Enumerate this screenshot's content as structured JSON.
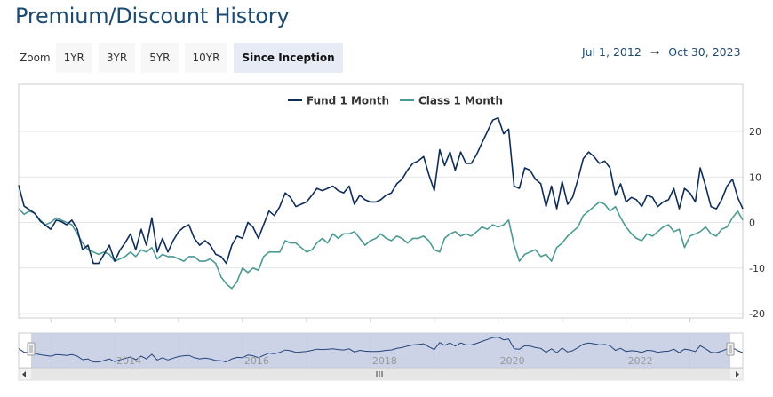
{
  "page": {
    "title": "Premium/Discount History"
  },
  "zoom": {
    "label": "Zoom",
    "buttons": [
      {
        "label": "1YR",
        "active": false
      },
      {
        "label": "3YR",
        "active": false
      },
      {
        "label": "5YR",
        "active": false
      },
      {
        "label": "10YR",
        "active": false
      },
      {
        "label": "Since Inception",
        "active": true
      }
    ]
  },
  "range": {
    "start": "Jul 1, 2012",
    "arrow": "→",
    "end": "Oct 30, 2023"
  },
  "colors": {
    "fund": "#0f2d59",
    "class": "#4c9a94",
    "grid": "#e6e6e6",
    "navigator_mask": "#c3cbe3"
  },
  "chart_data": {
    "type": "line",
    "title": "",
    "xlabel": "",
    "ylabel": "",
    "ylim": [
      -20,
      20
    ],
    "yticks": [
      -20,
      -10,
      0,
      10,
      20
    ],
    "xlim": [
      "2012-07-01",
      "2023-10-30"
    ],
    "grid": true,
    "legend_position": "top-center",
    "navigator_ticks": [
      "2014",
      "2016",
      "2018",
      "2020",
      "2022"
    ],
    "series": [
      {
        "name": "Fund 1 Month",
        "color": "#0f2d59",
        "points": [
          [
            "2012-07-01",
            8.2
          ],
          [
            "2012-08-01",
            3.6
          ],
          [
            "2012-09-01",
            2.8
          ],
          [
            "2012-10-01",
            2.0
          ],
          [
            "2012-11-01",
            0.3
          ],
          [
            "2012-12-01",
            -0.6
          ],
          [
            "2013-01-01",
            -1.5
          ],
          [
            "2013-02-01",
            0.5
          ],
          [
            "2013-03-01",
            0.2
          ],
          [
            "2013-04-01",
            -0.5
          ],
          [
            "2013-05-01",
            0.5
          ],
          [
            "2013-06-01",
            -1.5
          ],
          [
            "2013-07-01",
            -6.0
          ],
          [
            "2013-08-01",
            -5.0
          ],
          [
            "2013-09-01",
            -9.0
          ],
          [
            "2013-10-01",
            -9.0
          ],
          [
            "2013-11-01",
            -7.0
          ],
          [
            "2013-12-01",
            -5.0
          ],
          [
            "2014-01-01",
            -8.5
          ],
          [
            "2014-02-01",
            -6.0
          ],
          [
            "2014-03-01",
            -4.5
          ],
          [
            "2014-04-01",
            -2.5
          ],
          [
            "2014-05-01",
            -6.0
          ],
          [
            "2014-06-01",
            -1.5
          ],
          [
            "2014-07-01",
            -5.0
          ],
          [
            "2014-08-01",
            1.0
          ],
          [
            "2014-09-01",
            -6.5
          ],
          [
            "2014-10-01",
            -3.5
          ],
          [
            "2014-11-01",
            -6.5
          ],
          [
            "2014-12-01",
            -4.0
          ],
          [
            "2015-01-01",
            -2.0
          ],
          [
            "2015-02-01",
            -1.0
          ],
          [
            "2015-03-01",
            -0.5
          ],
          [
            "2015-04-01",
            -3.5
          ],
          [
            "2015-05-01",
            -5.0
          ],
          [
            "2015-06-01",
            -4.0
          ],
          [
            "2015-07-01",
            -5.0
          ],
          [
            "2015-08-01",
            -7.0
          ],
          [
            "2015-09-01",
            -7.5
          ],
          [
            "2015-10-01",
            -9.0
          ],
          [
            "2015-11-01",
            -5.0
          ],
          [
            "2015-12-01",
            -3.0
          ],
          [
            "2016-01-01",
            -3.5
          ],
          [
            "2016-02-01",
            0.0
          ],
          [
            "2016-03-01",
            -1.0
          ],
          [
            "2016-04-01",
            -3.5
          ],
          [
            "2016-05-01",
            -0.5
          ],
          [
            "2016-06-01",
            2.5
          ],
          [
            "2016-07-01",
            1.5
          ],
          [
            "2016-08-01",
            3.5
          ],
          [
            "2016-09-01",
            6.5
          ],
          [
            "2016-10-01",
            5.5
          ],
          [
            "2016-11-01",
            3.5
          ],
          [
            "2016-12-01",
            4.0
          ],
          [
            "2017-01-01",
            4.5
          ],
          [
            "2017-02-01",
            6.0
          ],
          [
            "2017-03-01",
            7.5
          ],
          [
            "2017-04-01",
            7.0
          ],
          [
            "2017-05-01",
            7.5
          ],
          [
            "2017-06-01",
            8.0
          ],
          [
            "2017-07-01",
            7.0
          ],
          [
            "2017-08-01",
            6.5
          ],
          [
            "2017-09-01",
            8.0
          ],
          [
            "2017-10-01",
            4.0
          ],
          [
            "2017-11-01",
            6.0
          ],
          [
            "2017-12-01",
            5.0
          ],
          [
            "2018-01-01",
            4.5
          ],
          [
            "2018-02-01",
            4.5
          ],
          [
            "2018-03-01",
            5.0
          ],
          [
            "2018-04-01",
            6.0
          ],
          [
            "2018-05-01",
            6.5
          ],
          [
            "2018-06-01",
            8.5
          ],
          [
            "2018-07-01",
            9.5
          ],
          [
            "2018-08-01",
            11.5
          ],
          [
            "2018-09-01",
            13.0
          ],
          [
            "2018-10-01",
            13.5
          ],
          [
            "2018-11-01",
            14.5
          ],
          [
            "2018-12-01",
            10.5
          ],
          [
            "2019-01-01",
            7.0
          ],
          [
            "2019-02-01",
            16.0
          ],
          [
            "2019-03-01",
            12.5
          ],
          [
            "2019-04-01",
            15.5
          ],
          [
            "2019-05-01",
            11.5
          ],
          [
            "2019-06-01",
            15.5
          ],
          [
            "2019-07-01",
            13.0
          ],
          [
            "2019-08-01",
            13.0
          ],
          [
            "2019-09-01",
            15.0
          ],
          [
            "2019-10-01",
            17.5
          ],
          [
            "2019-11-01",
            20.0
          ],
          [
            "2019-12-01",
            22.5
          ],
          [
            "2020-01-01",
            23.0
          ],
          [
            "2020-02-01",
            19.5
          ],
          [
            "2020-03-01",
            20.5
          ],
          [
            "2020-04-01",
            8.0
          ],
          [
            "2020-05-01",
            7.5
          ],
          [
            "2020-06-01",
            12.0
          ],
          [
            "2020-07-01",
            11.5
          ],
          [
            "2020-08-01",
            9.5
          ],
          [
            "2020-09-01",
            8.5
          ],
          [
            "2020-10-01",
            3.5
          ],
          [
            "2020-11-01",
            8.0
          ],
          [
            "2020-12-01",
            3.0
          ],
          [
            "2021-01-01",
            9.0
          ],
          [
            "2021-02-01",
            4.0
          ],
          [
            "2021-03-01",
            5.5
          ],
          [
            "2021-04-01",
            9.5
          ],
          [
            "2021-05-01",
            14.0
          ],
          [
            "2021-06-01",
            15.5
          ],
          [
            "2021-07-01",
            14.5
          ],
          [
            "2021-08-01",
            13.0
          ],
          [
            "2021-09-01",
            13.5
          ],
          [
            "2021-10-01",
            12.0
          ],
          [
            "2021-11-01",
            6.0
          ],
          [
            "2021-12-01",
            8.5
          ],
          [
            "2022-01-01",
            4.5
          ],
          [
            "2022-02-01",
            5.5
          ],
          [
            "2022-03-01",
            5.0
          ],
          [
            "2022-04-01",
            3.5
          ],
          [
            "2022-05-01",
            6.0
          ],
          [
            "2022-06-01",
            5.5
          ],
          [
            "2022-07-01",
            3.5
          ],
          [
            "2022-08-01",
            4.5
          ],
          [
            "2022-09-01",
            5.0
          ],
          [
            "2022-10-01",
            7.5
          ],
          [
            "2022-11-01",
            3.0
          ],
          [
            "2022-12-01",
            7.5
          ],
          [
            "2023-01-01",
            6.5
          ],
          [
            "2023-02-01",
            4.5
          ],
          [
            "2023-03-01",
            12.0
          ],
          [
            "2023-04-01",
            8.0
          ],
          [
            "2023-05-01",
            3.5
          ],
          [
            "2023-06-01",
            3.0
          ],
          [
            "2023-07-01",
            5.0
          ],
          [
            "2023-08-01",
            8.0
          ],
          [
            "2023-09-01",
            9.5
          ],
          [
            "2023-10-01",
            5.5
          ],
          [
            "2023-10-30",
            3.0
          ]
        ]
      },
      {
        "name": "Class 1 Month",
        "color": "#4c9a94",
        "points": [
          [
            "2012-07-01",
            3.0
          ],
          [
            "2012-08-01",
            1.8
          ],
          [
            "2012-09-01",
            2.5
          ],
          [
            "2012-10-01",
            2.0
          ],
          [
            "2012-11-01",
            0.5
          ],
          [
            "2012-12-01",
            -0.5
          ],
          [
            "2013-01-01",
            0.0
          ],
          [
            "2013-02-01",
            1.0
          ],
          [
            "2013-03-01",
            0.5
          ],
          [
            "2013-04-01",
            0.0
          ],
          [
            "2013-05-01",
            -0.5
          ],
          [
            "2013-06-01",
            -2.5
          ],
          [
            "2013-07-01",
            -4.5
          ],
          [
            "2013-08-01",
            -6.0
          ],
          [
            "2013-09-01",
            -6.5
          ],
          [
            "2013-10-01",
            -7.0
          ],
          [
            "2013-11-01",
            -6.5
          ],
          [
            "2013-12-01",
            -7.0
          ],
          [
            "2014-01-01",
            -8.5
          ],
          [
            "2014-02-01",
            -8.0
          ],
          [
            "2014-03-01",
            -7.5
          ],
          [
            "2014-04-01",
            -6.5
          ],
          [
            "2014-05-01",
            -7.5
          ],
          [
            "2014-06-01",
            -6.0
          ],
          [
            "2014-07-01",
            -6.5
          ],
          [
            "2014-08-01",
            -5.5
          ],
          [
            "2014-09-01",
            -8.0
          ],
          [
            "2014-10-01",
            -7.0
          ],
          [
            "2014-11-01",
            -7.5
          ],
          [
            "2014-12-01",
            -7.5
          ],
          [
            "2015-01-01",
            -8.0
          ],
          [
            "2015-02-01",
            -8.5
          ],
          [
            "2015-03-01",
            -7.5
          ],
          [
            "2015-04-01",
            -7.5
          ],
          [
            "2015-05-01",
            -8.5
          ],
          [
            "2015-06-01",
            -8.5
          ],
          [
            "2015-07-01",
            -8.0
          ],
          [
            "2015-08-01",
            -9.0
          ],
          [
            "2015-09-01",
            -12.0
          ],
          [
            "2015-10-01",
            -13.5
          ],
          [
            "2015-11-01",
            -14.5
          ],
          [
            "2015-12-01",
            -13.0
          ],
          [
            "2016-01-01",
            -10.0
          ],
          [
            "2016-02-01",
            -11.0
          ],
          [
            "2016-03-01",
            -10.0
          ],
          [
            "2016-04-01",
            -10.5
          ],
          [
            "2016-05-01",
            -7.5
          ],
          [
            "2016-06-01",
            -6.5
          ],
          [
            "2016-07-01",
            -6.5
          ],
          [
            "2016-08-01",
            -6.5
          ],
          [
            "2016-09-01",
            -4.0
          ],
          [
            "2016-10-01",
            -4.5
          ],
          [
            "2016-11-01",
            -4.5
          ],
          [
            "2016-12-01",
            -5.5
          ],
          [
            "2017-01-01",
            -6.5
          ],
          [
            "2017-02-01",
            -6.0
          ],
          [
            "2017-03-01",
            -4.5
          ],
          [
            "2017-04-01",
            -3.5
          ],
          [
            "2017-05-01",
            -4.5
          ],
          [
            "2017-06-01",
            -2.5
          ],
          [
            "2017-07-01",
            -3.5
          ],
          [
            "2017-08-01",
            -2.5
          ],
          [
            "2017-09-01",
            -2.5
          ],
          [
            "2017-10-01",
            -2.0
          ],
          [
            "2017-11-01",
            -3.5
          ],
          [
            "2017-12-01",
            -5.0
          ],
          [
            "2018-01-01",
            -4.0
          ],
          [
            "2018-02-01",
            -3.5
          ],
          [
            "2018-03-01",
            -2.5
          ],
          [
            "2018-04-01",
            -3.5
          ],
          [
            "2018-05-01",
            -4.0
          ],
          [
            "2018-06-01",
            -3.0
          ],
          [
            "2018-07-01",
            -3.5
          ],
          [
            "2018-08-01",
            -4.5
          ],
          [
            "2018-09-01",
            -3.5
          ],
          [
            "2018-10-01",
            -3.5
          ],
          [
            "2018-11-01",
            -3.0
          ],
          [
            "2018-12-01",
            -4.0
          ],
          [
            "2019-01-01",
            -6.0
          ],
          [
            "2019-02-01",
            -6.5
          ],
          [
            "2019-03-01",
            -3.5
          ],
          [
            "2019-04-01",
            -2.5
          ],
          [
            "2019-05-01",
            -2.0
          ],
          [
            "2019-06-01",
            -3.0
          ],
          [
            "2019-07-01",
            -2.5
          ],
          [
            "2019-08-01",
            -3.0
          ],
          [
            "2019-09-01",
            -2.0
          ],
          [
            "2019-10-01",
            -1.0
          ],
          [
            "2019-11-01",
            -1.5
          ],
          [
            "2019-12-01",
            -0.5
          ],
          [
            "2020-01-01",
            -1.0
          ],
          [
            "2020-02-01",
            -0.5
          ],
          [
            "2020-03-01",
            0.5
          ],
          [
            "2020-04-01",
            -5.0
          ],
          [
            "2020-05-01",
            -8.5
          ],
          [
            "2020-06-01",
            -7.0
          ],
          [
            "2020-07-01",
            -6.5
          ],
          [
            "2020-08-01",
            -6.0
          ],
          [
            "2020-09-01",
            -7.5
          ],
          [
            "2020-10-01",
            -7.0
          ],
          [
            "2020-11-01",
            -8.5
          ],
          [
            "2020-12-01",
            -5.5
          ],
          [
            "2021-01-01",
            -4.5
          ],
          [
            "2021-02-01",
            -3.0
          ],
          [
            "2021-03-01",
            -2.0
          ],
          [
            "2021-04-01",
            -1.0
          ],
          [
            "2021-05-01",
            1.5
          ],
          [
            "2021-06-01",
            2.5
          ],
          [
            "2021-07-01",
            3.5
          ],
          [
            "2021-08-01",
            4.5
          ],
          [
            "2021-09-01",
            4.0
          ],
          [
            "2021-10-01",
            2.5
          ],
          [
            "2021-11-01",
            3.5
          ],
          [
            "2021-12-01",
            1.0
          ],
          [
            "2022-01-01",
            -1.0
          ],
          [
            "2022-02-01",
            -2.5
          ],
          [
            "2022-03-01",
            -3.5
          ],
          [
            "2022-04-01",
            -4.0
          ],
          [
            "2022-05-01",
            -2.5
          ],
          [
            "2022-06-01",
            -3.0
          ],
          [
            "2022-07-01",
            -2.0
          ],
          [
            "2022-08-01",
            -1.0
          ],
          [
            "2022-09-01",
            -0.5
          ],
          [
            "2022-10-01",
            -2.0
          ],
          [
            "2022-11-01",
            -1.5
          ],
          [
            "2022-12-01",
            -5.5
          ],
          [
            "2023-01-01",
            -3.0
          ],
          [
            "2023-02-01",
            -2.5
          ],
          [
            "2023-03-01",
            -2.0
          ],
          [
            "2023-04-01",
            -1.0
          ],
          [
            "2023-05-01",
            -2.5
          ],
          [
            "2023-06-01",
            -3.0
          ],
          [
            "2023-07-01",
            -1.5
          ],
          [
            "2023-08-01",
            -1.0
          ],
          [
            "2023-09-01",
            1.0
          ],
          [
            "2023-10-01",
            2.5
          ],
          [
            "2023-10-30",
            0.5
          ]
        ]
      }
    ]
  }
}
